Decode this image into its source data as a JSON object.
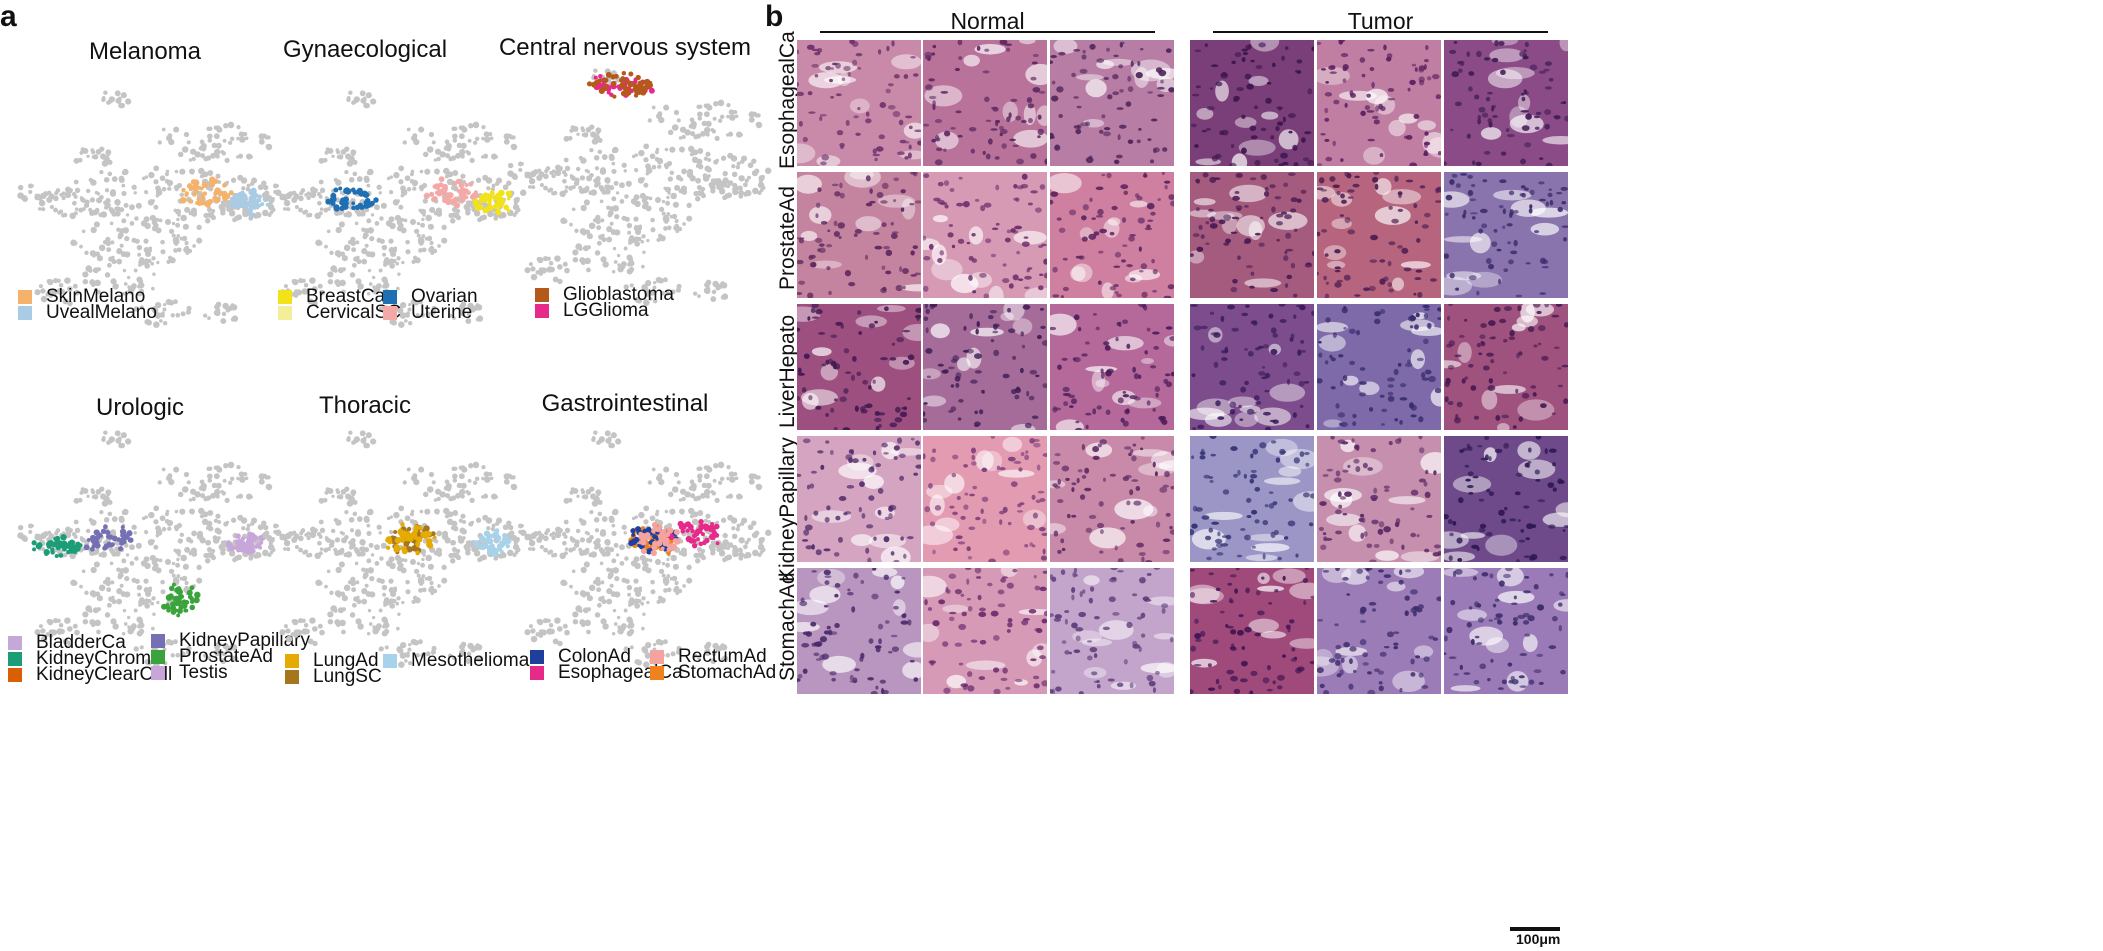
{
  "panel_a": {
    "letter": "a",
    "umaps": [
      {
        "title": "Melanoma",
        "legend": [
          {
            "label": "SkinMelano",
            "color": "#f5b26b"
          },
          {
            "label": "UvealMelano",
            "color": "#a9cbe3"
          }
        ],
        "highlight": [
          {
            "color": "#f5b26b",
            "region": "center-right"
          },
          {
            "color": "#a9cbe3",
            "region": "right"
          }
        ]
      },
      {
        "title": "Gynaecological",
        "legend": [
          {
            "label": "BreastCa",
            "color": "#f2e21a"
          },
          {
            "label": "CervicalSC",
            "color": "#f4ee9a"
          },
          {
            "label": "Ovarian",
            "color": "#1f6fb4"
          },
          {
            "label": "Uterine",
            "color": "#f4a9a6"
          }
        ],
        "highlight": [
          {
            "color": "#1f6fb4",
            "region": "center-left"
          },
          {
            "color": "#f2e21a",
            "region": "right"
          },
          {
            "color": "#f4a9a6",
            "region": "center-right"
          }
        ]
      },
      {
        "title": "Central nervous system",
        "legend": [
          {
            "label": "Glioblastoma",
            "color": "#b5581c"
          },
          {
            "label": "LGGlioma",
            "color": "#e7298a"
          }
        ],
        "highlight": [
          {
            "color": "#e7298a",
            "region": "top"
          },
          {
            "color": "#b5581c",
            "region": "top"
          }
        ]
      },
      {
        "title": "Urologic",
        "legend": [
          {
            "label": "BladderCa",
            "color": "#c3a8d8"
          },
          {
            "label": "KidneyChromo",
            "color": "#1b9e77"
          },
          {
            "label": "KidneyClearCell",
            "color": "#d95f02"
          },
          {
            "label": "KidneyPapillary",
            "color": "#7570b3"
          },
          {
            "label": "ProstateAd",
            "color": "#3ba33b"
          },
          {
            "label": "Testis",
            "color": "#c9a6d9"
          }
        ],
        "highlight": [
          {
            "color": "#1b9e77",
            "region": "left"
          },
          {
            "color": "#7570b3",
            "region": "center-left"
          },
          {
            "color": "#3ba33b",
            "region": "bottom-center"
          },
          {
            "color": "#c9a6d9",
            "region": "right"
          }
        ]
      },
      {
        "title": "Thoracic",
        "legend": [
          {
            "label": "LungAd",
            "color": "#e6ab02"
          },
          {
            "label": "LungSC",
            "color": "#a6761d"
          },
          {
            "label": "Mesothelioma",
            "color": "#a6d3ea"
          }
        ],
        "highlight": [
          {
            "color": "#a6761d",
            "region": "center"
          },
          {
            "color": "#e6ab02",
            "region": "center"
          },
          {
            "color": "#a6d3ea",
            "region": "right"
          }
        ]
      },
      {
        "title": "Gastrointestinal",
        "legend": [
          {
            "label": "ColonAd",
            "color": "#1f3f9f"
          },
          {
            "label": "EsophagealCa",
            "color": "#e7298a"
          },
          {
            "label": "RectumAd",
            "color": "#f4a3a0"
          },
          {
            "label": "StomachAd",
            "color": "#f0821e"
          }
        ],
        "highlight": [
          {
            "color": "#f0821e",
            "region": "center"
          },
          {
            "color": "#1f3f9f",
            "region": "center"
          },
          {
            "color": "#e7298a",
            "region": "center-right"
          },
          {
            "color": "#f4a3a0",
            "region": "center"
          }
        ]
      }
    ]
  },
  "panel_b": {
    "letter": "b",
    "group_headers": [
      "Normal",
      "Tumor"
    ],
    "rows": [
      {
        "label": "EsophagealCa",
        "normal": [
          {
            "base": "#c98aa9",
            "nuclei": "#6b2f6b"
          },
          {
            "base": "#b9729a",
            "nuclei": "#5a2560"
          },
          {
            "base": "#b77da5",
            "nuclei": "#4e2358"
          }
        ],
        "tumor": [
          {
            "base": "#7a3f78",
            "nuclei": "#3d1550"
          },
          {
            "base": "#c07fa2",
            "nuclei": "#5b2060"
          },
          {
            "base": "#8a4b86",
            "nuclei": "#3e1a55"
          }
        ]
      },
      {
        "label": "ProstateAd",
        "normal": [
          {
            "base": "#c4849f",
            "nuclei": "#5d275f"
          },
          {
            "base": "#d79ab5",
            "nuclei": "#6a2c6a"
          },
          {
            "base": "#cf7f9f",
            "nuclei": "#5b2560"
          }
        ],
        "tumor": [
          {
            "base": "#a45b7e",
            "nuclei": "#4a1a55"
          },
          {
            "base": "#b7657f",
            "nuclei": "#4d1d52"
          },
          {
            "base": "#8a74ad",
            "nuclei": "#3a2a6a"
          }
        ]
      },
      {
        "label": "LiverHepato",
        "normal": [
          {
            "base": "#9d4f80",
            "nuclei": "#3f1850"
          },
          {
            "base": "#a66c99",
            "nuclei": "#3e1d55"
          },
          {
            "base": "#b4699a",
            "nuclei": "#4a1b58"
          }
        ],
        "tumor": [
          {
            "base": "#7d4c8c",
            "nuclei": "#381a5c"
          },
          {
            "base": "#7e6aa8",
            "nuclei": "#34296c"
          },
          {
            "base": "#a0527f",
            "nuclei": "#461a52"
          }
        ]
      },
      {
        "label": "KidneyPapillary",
        "normal": [
          {
            "base": "#d5a4c0",
            "nuclei": "#4f2a6a"
          },
          {
            "base": "#e39bb2",
            "nuclei": "#7a3c78"
          },
          {
            "base": "#c98aa9",
            "nuclei": "#5a2862"
          }
        ],
        "tumor": [
          {
            "base": "#9b96c6",
            "nuclei": "#2f2f70"
          },
          {
            "base": "#c68fae",
            "nuclei": "#5a2a66"
          },
          {
            "base": "#6e4a8a",
            "nuclei": "#2b1650"
          }
        ]
      },
      {
        "label": "StomachAd",
        "normal": [
          {
            "base": "#b996bf",
            "nuclei": "#4a2a6a"
          },
          {
            "base": "#d79ab6",
            "nuclei": "#6b2c6e"
          },
          {
            "base": "#c3a5cc",
            "nuclei": "#5b3a78"
          }
        ],
        "tumor": [
          {
            "base": "#a04a7c",
            "nuclei": "#3e1352"
          },
          {
            "base": "#9b7cb7",
            "nuclei": "#3b2a6c"
          },
          {
            "base": "#9a7bb8",
            "nuclei": "#3a2a6a"
          }
        ]
      }
    ],
    "scale_label": "100μm"
  }
}
